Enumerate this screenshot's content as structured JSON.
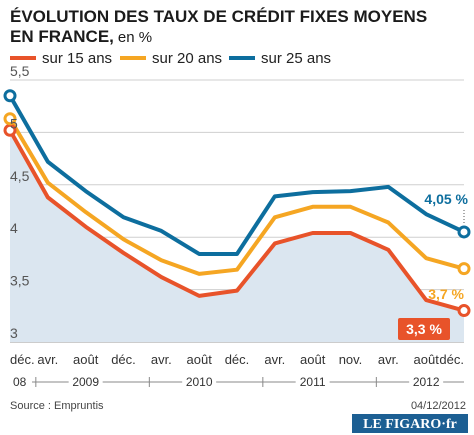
{
  "title_line1": "ÉVOLUTION DES TAUX DE CRÉDIT FIXES MOYENS",
  "title_line2": "EN FRANCE,",
  "unit": "en %",
  "colors": {
    "s15": "#e8532a",
    "s20": "#f5a623",
    "s25": "#0d6e9e",
    "area": "#dbe6f0",
    "grid": "#cfcfcf"
  },
  "chart_data": {
    "type": "line",
    "x": [
      "déc. 08",
      "avr.",
      "août",
      "déc.",
      "avr.",
      "août",
      "déc.",
      "avr.",
      "août",
      "nov.",
      "avr.",
      "août",
      "déc."
    ],
    "x_tick_labels": [
      "déc.",
      "avr.",
      "août",
      "déc.",
      "avr.",
      "août",
      "déc.",
      "avr.",
      "août",
      "nov.",
      "avr.",
      "août",
      "déc."
    ],
    "year_labels": [
      "08",
      "2009",
      "2010",
      "2011",
      "2012"
    ],
    "ylim": [
      3,
      5.5
    ],
    "y_ticks": [
      "3",
      "3,5",
      "4",
      "4,5",
      "5",
      "5,5"
    ],
    "grid": true,
    "legend_position": "top",
    "series": [
      {
        "name": "sur 15 ans",
        "color": "#e8532a",
        "area": true,
        "values": [
          5.02,
          4.38,
          4.1,
          3.85,
          3.62,
          3.44,
          3.49,
          3.94,
          4.04,
          4.04,
          3.88,
          3.4,
          3.3
        ]
      },
      {
        "name": "sur 20 ans",
        "color": "#f5a623",
        "values": [
          5.13,
          4.52,
          4.24,
          3.98,
          3.78,
          3.65,
          3.69,
          4.19,
          4.29,
          4.29,
          4.14,
          3.8,
          3.7
        ]
      },
      {
        "name": "sur 25 ans",
        "color": "#0d6e9e",
        "values": [
          5.35,
          4.72,
          4.44,
          4.19,
          4.06,
          3.84,
          3.84,
          4.39,
          4.43,
          4.44,
          4.48,
          4.22,
          4.05
        ]
      }
    ],
    "end_labels": [
      "3,3 %",
      "3,7 %",
      "4,05 %"
    ]
  },
  "footer": {
    "source": "Source : Empruntis",
    "date": "04/12/2012",
    "logo": "LE FIGARO·fr"
  }
}
